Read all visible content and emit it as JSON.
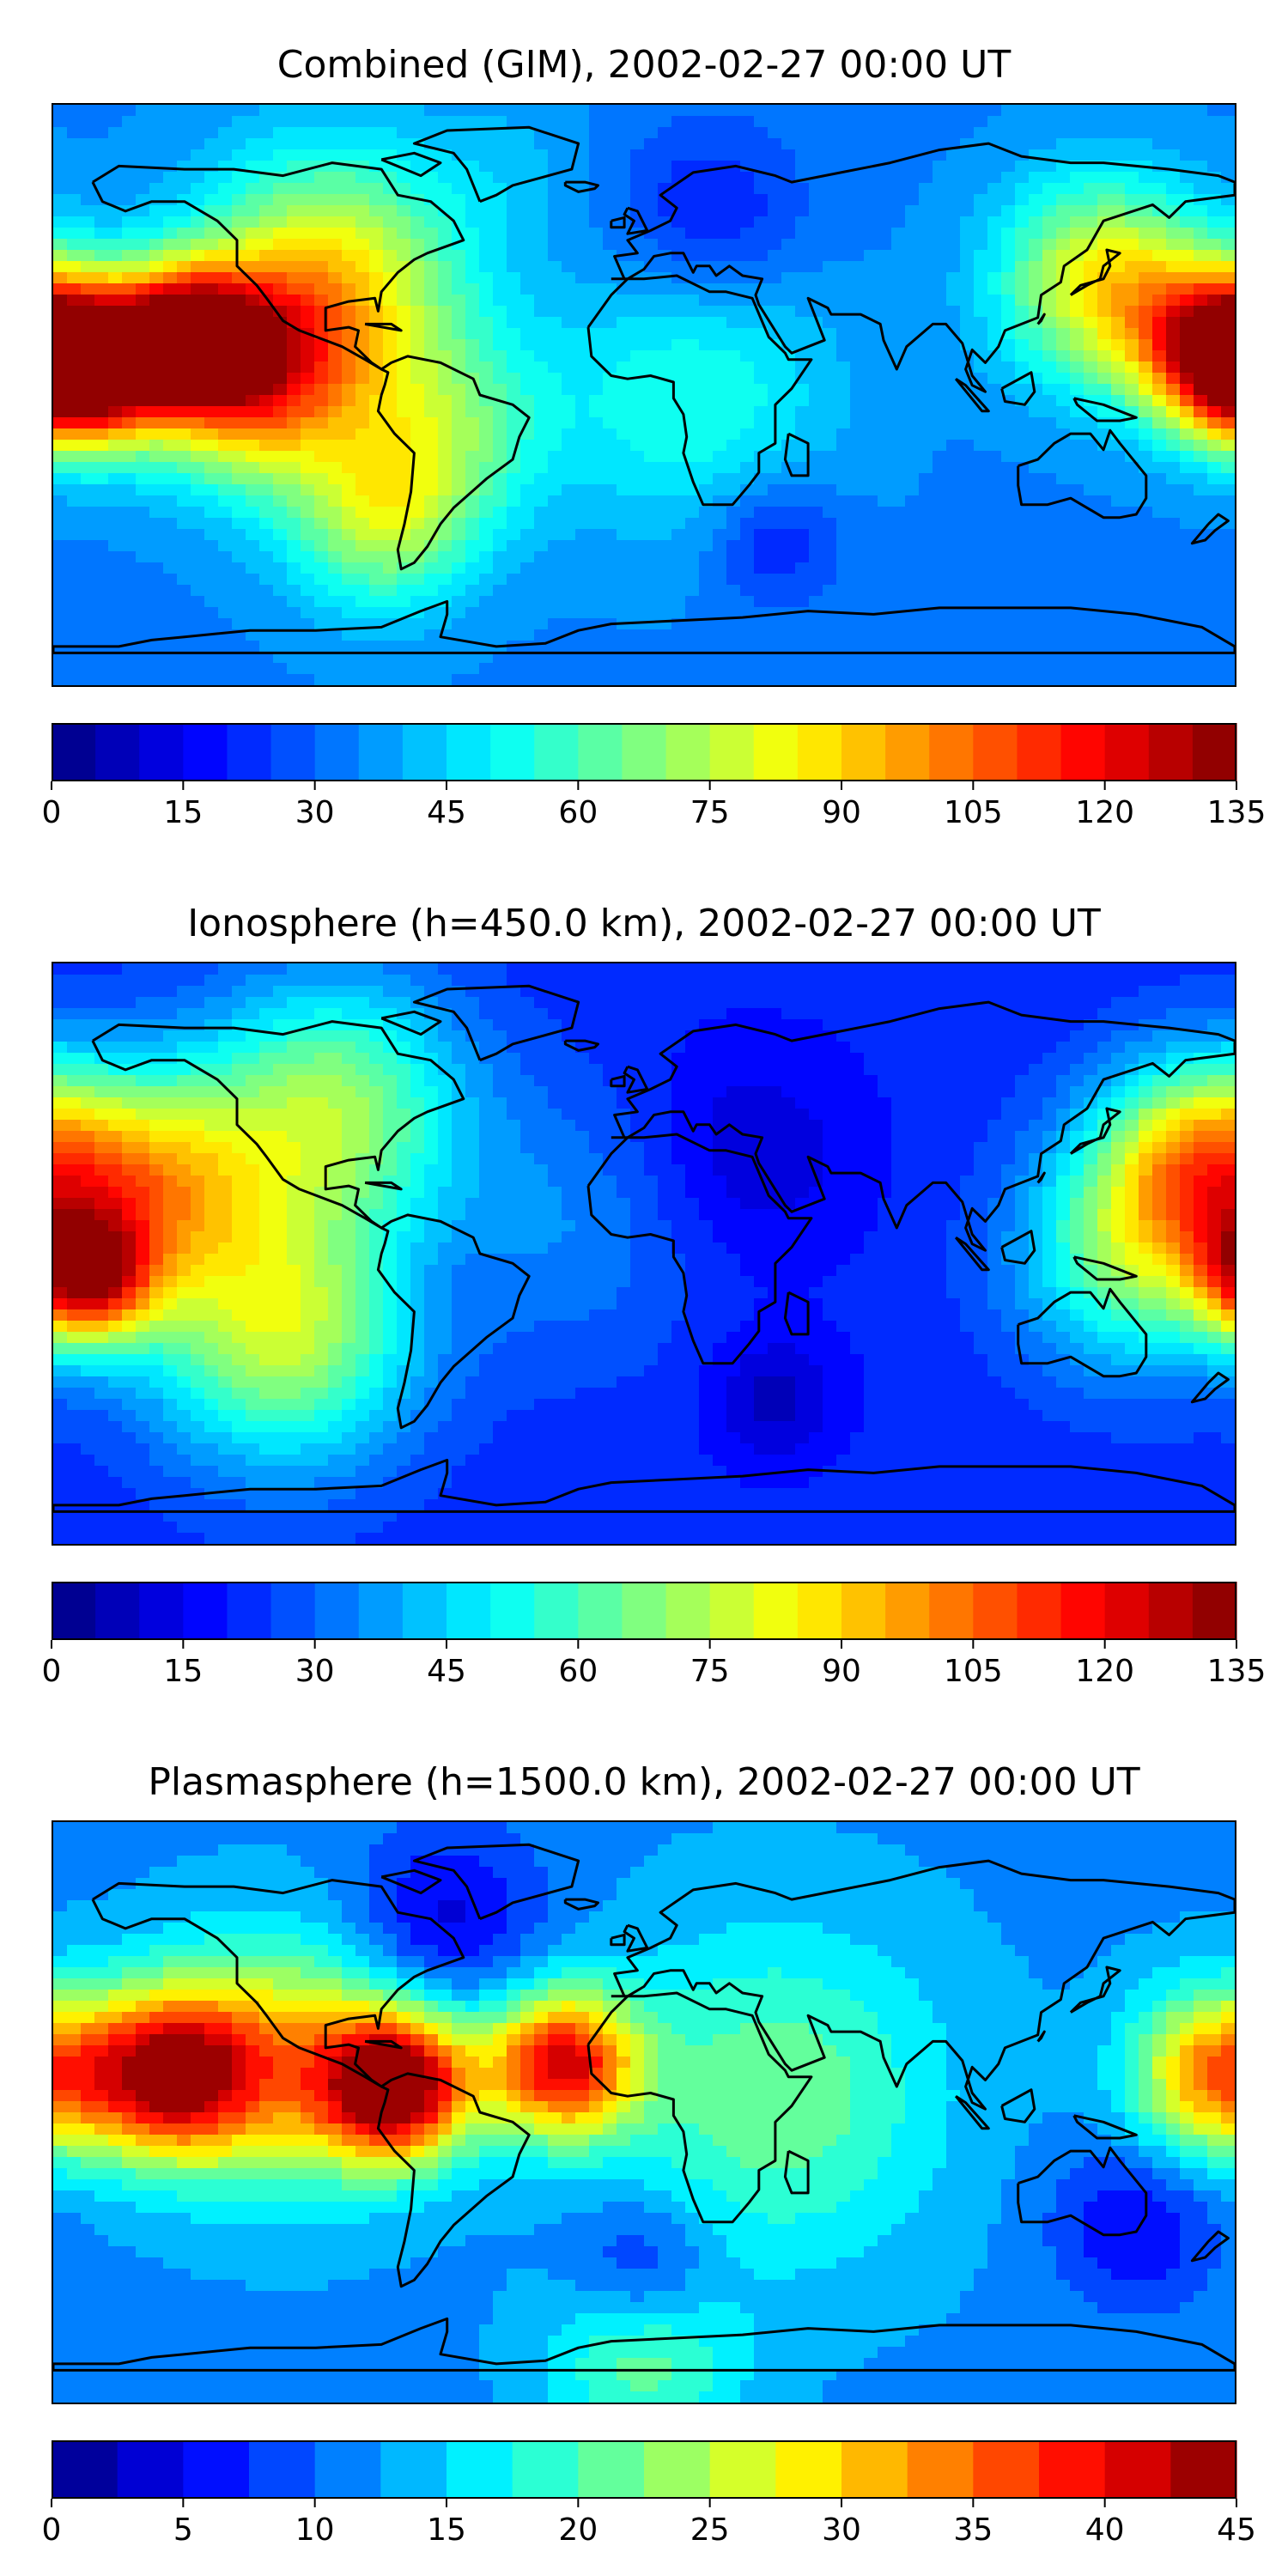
{
  "chart_data": [
    {
      "type": "contour-map",
      "title": "Combined (GIM), 2002-02-27 00:00 UT",
      "colormap": "jet",
      "colorbar": {
        "min": 0,
        "max": 135,
        "step": 5,
        "ticks": [
          "0",
          "15",
          "30",
          "45",
          "60",
          "75",
          "90",
          "105",
          "120",
          "135"
        ]
      },
      "field": {
        "base": 34,
        "blobs": [
          {
            "lon": -170,
            "lat": 8,
            "value": 128,
            "spread": 16
          },
          {
            "lon": -140,
            "lat": 18,
            "value": 116,
            "spread": 15
          },
          {
            "lon": -120,
            "lat": 5,
            "value": 100,
            "spread": 22
          },
          {
            "lon": -95,
            "lat": 35,
            "value": 85,
            "spread": 28
          },
          {
            "lon": -60,
            "lat": -10,
            "value": 60,
            "spread": 22
          },
          {
            "lon": -80,
            "lat": -38,
            "value": 72,
            "spread": 20
          },
          {
            "lon": 175,
            "lat": 15,
            "value": 110,
            "spread": 18
          },
          {
            "lon": 140,
            "lat": 35,
            "value": 85,
            "spread": 22
          },
          {
            "lon": 15,
            "lat": 0,
            "value": 55,
            "spread": 30
          },
          {
            "lon": 40,
            "lat": -45,
            "value": 18,
            "spread": 14
          },
          {
            "lon": 20,
            "lat": 55,
            "value": 18,
            "spread": 20
          },
          {
            "lon": -40,
            "lat": 72,
            "value": 40,
            "spread": 16
          }
        ]
      }
    },
    {
      "type": "contour-map",
      "title": "Ionosphere  (h=450.0 km), 2002-02-27 00:00 UT",
      "colormap": "jet",
      "colorbar": {
        "min": 0,
        "max": 135,
        "step": 5,
        "ticks": [
          "0",
          "15",
          "30",
          "45",
          "60",
          "75",
          "90",
          "105",
          "120",
          "135"
        ]
      },
      "field": {
        "base": 22,
        "blobs": [
          {
            "lon": -170,
            "lat": -8,
            "value": 100,
            "spread": 14
          },
          {
            "lon": -150,
            "lat": 20,
            "value": 82,
            "spread": 25
          },
          {
            "lon": -110,
            "lat": -25,
            "value": 75,
            "spread": 28
          },
          {
            "lon": -95,
            "lat": 45,
            "value": 70,
            "spread": 28
          },
          {
            "lon": -60,
            "lat": -8,
            "value": 18,
            "spread": 10
          },
          {
            "lon": 170,
            "lat": 30,
            "value": 80,
            "spread": 22
          },
          {
            "lon": 150,
            "lat": 0,
            "value": 65,
            "spread": 25
          },
          {
            "lon": 30,
            "lat": 30,
            "value": 10,
            "spread": 25
          },
          {
            "lon": 40,
            "lat": -45,
            "value": 8,
            "spread": 14
          },
          {
            "lon": -20,
            "lat": 10,
            "value": 35,
            "spread": 30
          }
        ]
      }
    },
    {
      "type": "contour-map",
      "title": "Plasmasphere (h=1500.0 km), 2002-02-27 00:00 UT",
      "colormap": "jet",
      "colorbar": {
        "min": 0,
        "max": 45,
        "step": 2.5,
        "ticks": [
          "0",
          "5",
          "10",
          "15",
          "20",
          "25",
          "30",
          "35",
          "40",
          "45"
        ]
      },
      "field": {
        "base": 12,
        "blobs": [
          {
            "lon": -145,
            "lat": 12,
            "value": 40,
            "spread": 18
          },
          {
            "lon": -75,
            "lat": 8,
            "value": 44,
            "spread": 16
          },
          {
            "lon": -25,
            "lat": 15,
            "value": 40,
            "spread": 16
          },
          {
            "lon": 175,
            "lat": 12,
            "value": 34,
            "spread": 18
          },
          {
            "lon": -110,
            "lat": 15,
            "value": 30,
            "spread": 26
          },
          {
            "lon": 40,
            "lat": 5,
            "value": 22,
            "spread": 35
          },
          {
            "lon": 0,
            "lat": -50,
            "value": 4,
            "spread": 16
          },
          {
            "lon": 150,
            "lat": -35,
            "value": 5,
            "spread": 18
          },
          {
            "lon": -60,
            "lat": 60,
            "value": 4,
            "spread": 20
          },
          {
            "lon": 0,
            "lat": -75,
            "value": 22,
            "spread": 20
          }
        ]
      }
    }
  ]
}
